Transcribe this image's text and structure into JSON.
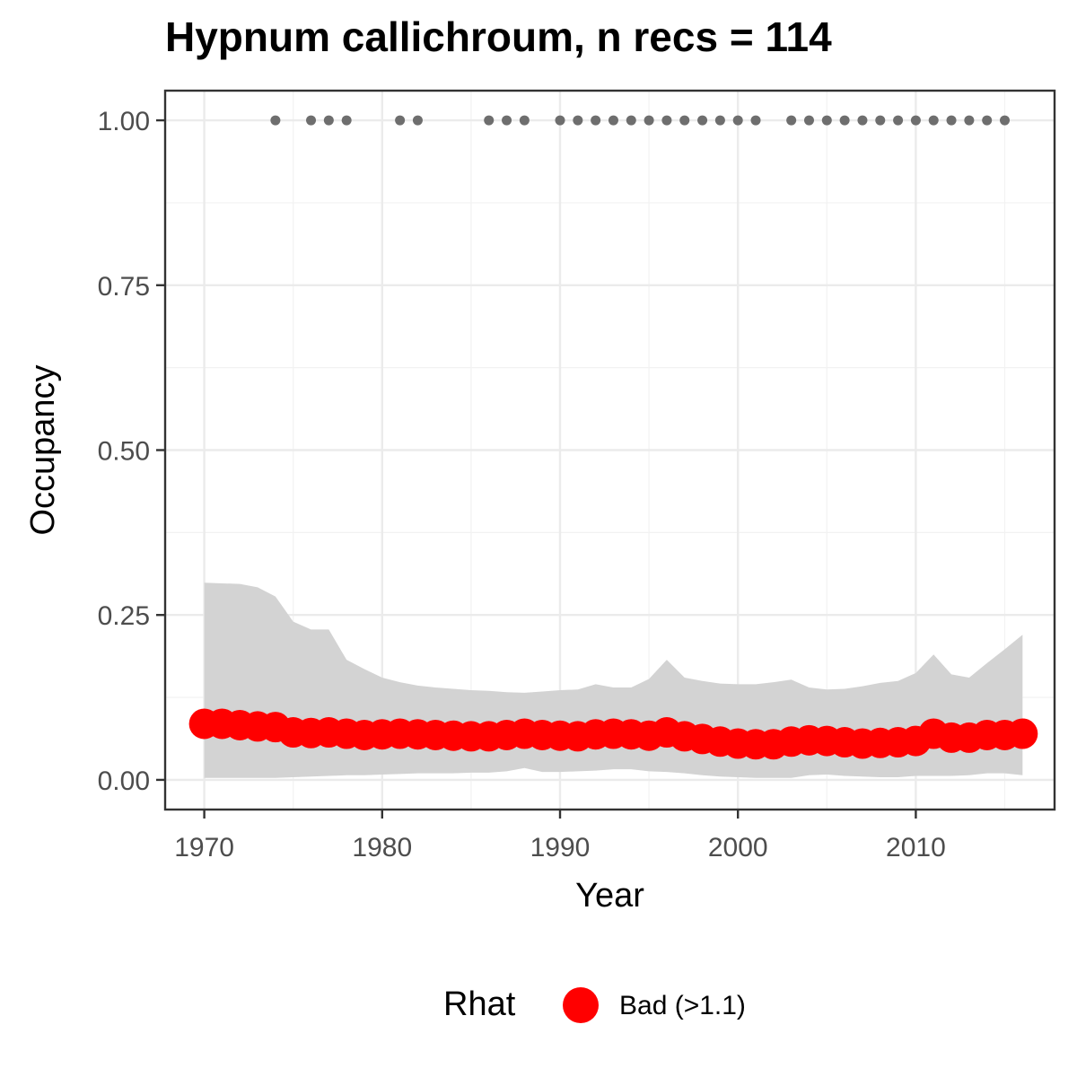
{
  "chart_data": {
    "type": "line",
    "title": "Hypnum callichroum, n recs = 114",
    "xlabel": "Year",
    "ylabel": "Occupancy",
    "xlim": [
      1967.8,
      2017.8
    ],
    "ylim": [
      -0.045,
      1.045
    ],
    "x_ticks": [
      1970,
      1980,
      1990,
      2000,
      2010
    ],
    "x_tick_labels": [
      "1970",
      "1980",
      "1990",
      "2000",
      "2010"
    ],
    "y_ticks": [
      0,
      0.25,
      0.5,
      0.75,
      1.0
    ],
    "y_tick_labels": [
      "0.00",
      "0.25",
      "0.50",
      "0.75",
      "1.00"
    ],
    "grid": true,
    "legend_position": "bottom",
    "series": [
      {
        "kind": "points",
        "color": "#FF0000",
        "x": [
          1970,
          1971,
          1972,
          1973,
          1974,
          1975,
          1976,
          1977,
          1978,
          1979,
          1980,
          1981,
          1982,
          1983,
          1984,
          1985,
          1986,
          1987,
          1988,
          1989,
          1990,
          1991,
          1992,
          1993,
          1994,
          1995,
          1996,
          1997,
          1998,
          1999,
          2000,
          2001,
          2002,
          2003,
          2004,
          2005,
          2006,
          2007,
          2008,
          2009,
          2010,
          2011,
          2012,
          2013,
          2014,
          2015,
          2016
        ],
        "y": [
          0.085,
          0.085,
          0.083,
          0.081,
          0.08,
          0.072,
          0.071,
          0.072,
          0.07,
          0.068,
          0.069,
          0.07,
          0.069,
          0.068,
          0.067,
          0.066,
          0.066,
          0.068,
          0.07,
          0.068,
          0.067,
          0.066,
          0.069,
          0.07,
          0.069,
          0.067,
          0.072,
          0.066,
          0.062,
          0.058,
          0.055,
          0.054,
          0.054,
          0.058,
          0.06,
          0.059,
          0.057,
          0.055,
          0.056,
          0.057,
          0.059,
          0.07,
          0.064,
          0.064,
          0.068,
          0.068,
          0.07
        ],
        "lower": [
          0.003,
          0.003,
          0.003,
          0.003,
          0.003,
          0.004,
          0.005,
          0.006,
          0.007,
          0.007,
          0.008,
          0.009,
          0.01,
          0.01,
          0.01,
          0.011,
          0.011,
          0.013,
          0.018,
          0.012,
          0.012,
          0.013,
          0.014,
          0.016,
          0.016,
          0.013,
          0.012,
          0.01,
          0.007,
          0.005,
          0.004,
          0.003,
          0.003,
          0.003,
          0.007,
          0.008,
          0.006,
          0.005,
          0.004,
          0.004,
          0.006,
          0.006,
          0.006,
          0.007,
          0.01,
          0.01,
          0.007
        ],
        "upper": [
          0.299,
          0.298,
          0.297,
          0.292,
          0.278,
          0.24,
          0.228,
          0.228,
          0.182,
          0.168,
          0.155,
          0.148,
          0.143,
          0.14,
          0.138,
          0.136,
          0.135,
          0.133,
          0.132,
          0.134,
          0.136,
          0.137,
          0.145,
          0.14,
          0.14,
          0.153,
          0.182,
          0.155,
          0.15,
          0.146,
          0.145,
          0.145,
          0.148,
          0.152,
          0.14,
          0.137,
          0.138,
          0.142,
          0.147,
          0.15,
          0.162,
          0.19,
          0.16,
          0.155,
          0.177,
          0.198,
          0.22
        ],
        "band_color": "#D3D3D3"
      },
      {
        "kind": "observations",
        "color": "#6E6E6E",
        "x": [
          1974,
          1976,
          1977,
          1978,
          1981,
          1982,
          1986,
          1987,
          1988,
          1990,
          1991,
          1992,
          1993,
          1994,
          1995,
          1996,
          1997,
          1998,
          1999,
          2000,
          2001,
          2003,
          2004,
          2005,
          2006,
          2007,
          2008,
          2009,
          2010,
          2011,
          2012,
          2013,
          2014,
          2015
        ],
        "y": [
          1,
          1,
          1,
          1,
          1,
          1,
          1,
          1,
          1,
          1,
          1,
          1,
          1,
          1,
          1,
          1,
          1,
          1,
          1,
          1,
          1,
          1,
          1,
          1,
          1,
          1,
          1,
          1,
          1,
          1,
          1,
          1,
          1,
          1
        ]
      }
    ],
    "legend": {
      "title": "Rhat",
      "entries": [
        {
          "label": "Bad (>1.1)",
          "color": "#FF0000"
        }
      ]
    }
  }
}
